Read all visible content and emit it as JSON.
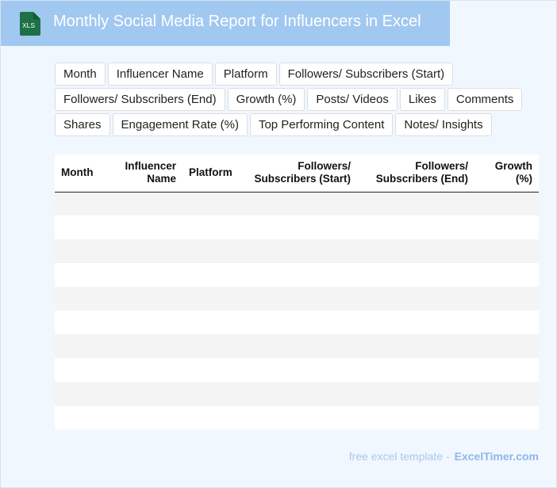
{
  "header": {
    "icon_label": "XLS",
    "title": "Monthly Social Media Report for Influencers in Excel"
  },
  "tags": [
    "Month",
    "Influencer Name",
    "Platform",
    "Followers/ Subscribers (Start)",
    "Followers/ Subscribers (End)",
    "Growth (%)",
    "Posts/ Videos",
    "Likes",
    "Comments",
    "Shares",
    "Engagement Rate (%)",
    "Top Performing Content",
    "Notes/ Insights"
  ],
  "table": {
    "columns": [
      {
        "l1": "",
        "l2": "Month"
      },
      {
        "l1": "Influencer",
        "l2": "Name"
      },
      {
        "l1": "",
        "l2": "Platform"
      },
      {
        "l1": "Followers/",
        "l2": "Subscribers (Start)"
      },
      {
        "l1": "Followers/",
        "l2": "Subscribers (End)"
      },
      {
        "l1": "Growth",
        "l2": "(%)"
      }
    ],
    "row_count": 10
  },
  "footer": {
    "prefix": "free excel template -",
    "brand": "ExcelTimer.com"
  },
  "colors": {
    "header_bg": "#a1c8f1",
    "page_bg": "#f1f7fe",
    "icon_green": "#1e7145"
  }
}
